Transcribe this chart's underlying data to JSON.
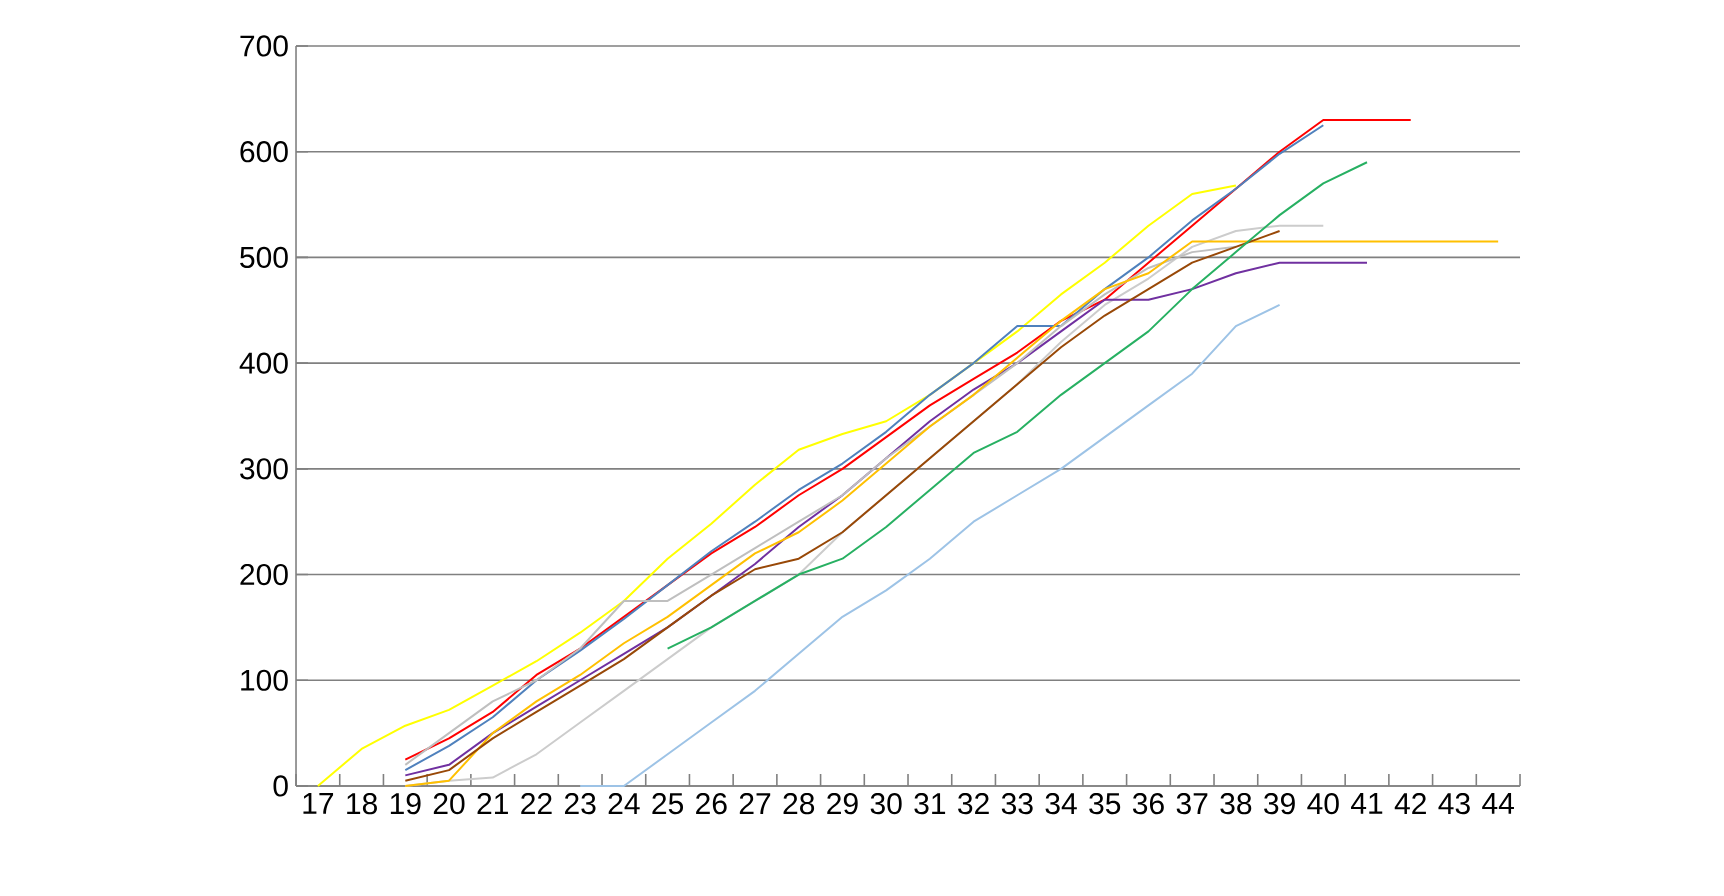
{
  "chart_data": {
    "type": "line",
    "categories": [
      "17",
      "18",
      "19",
      "20",
      "21",
      "22",
      "23",
      "24",
      "25",
      "26",
      "27",
      "28",
      "29",
      "30",
      "31",
      "32",
      "33",
      "34",
      "35",
      "36",
      "37",
      "38",
      "39",
      "40",
      "41",
      "42",
      "43",
      "44"
    ],
    "ylim": [
      0,
      700
    ],
    "yticks": [
      0,
      100,
      200,
      300,
      400,
      500,
      600,
      700
    ],
    "grid": "y",
    "series": [
      {
        "color": "#cccccc",
        "values": [
          null,
          null,
          0,
          5,
          8,
          30,
          60,
          90,
          120,
          150,
          175,
          200,
          240,
          275,
          310,
          345,
          380,
          420,
          455,
          480,
          510,
          525,
          530,
          530,
          null,
          null,
          null,
          null
        ]
      },
      {
        "color": "#ffff00",
        "values": [
          0,
          35,
          57,
          72,
          95,
          118,
          145,
          175,
          215,
          248,
          285,
          318,
          333,
          345,
          370,
          400,
          430,
          465,
          495,
          530,
          560,
          568,
          null,
          null,
          null,
          null,
          null,
          null
        ]
      },
      {
        "color": "#ff0000",
        "values": [
          null,
          null,
          25,
          45,
          70,
          105,
          130,
          160,
          190,
          220,
          245,
          275,
          300,
          330,
          360,
          385,
          410,
          440,
          460,
          495,
          530,
          565,
          600,
          630,
          630,
          630,
          null,
          null
        ]
      },
      {
        "color": "#4f81bd",
        "values": [
          null,
          null,
          15,
          38,
          65,
          100,
          128,
          158,
          190,
          222,
          250,
          280,
          305,
          335,
          370,
          400,
          435,
          435,
          470,
          500,
          535,
          565,
          598,
          625,
          null,
          null,
          null,
          null
        ]
      },
      {
        "color": "#7030a0",
        "values": [
          null,
          null,
          10,
          20,
          50,
          75,
          100,
          125,
          150,
          180,
          210,
          245,
          275,
          310,
          345,
          375,
          400,
          430,
          460,
          460,
          470,
          485,
          495,
          495,
          495,
          null,
          null,
          null
        ]
      },
      {
        "color": "#bfbfbf",
        "values": [
          null,
          null,
          20,
          50,
          80,
          100,
          130,
          175,
          175,
          200,
          225,
          250,
          275,
          310,
          340,
          370,
          400,
          435,
          465,
          490,
          505,
          510,
          null,
          null,
          null,
          null,
          null,
          null
        ]
      },
      {
        "color": "#ffc000",
        "values": [
          null,
          null,
          0,
          5,
          50,
          80,
          105,
          135,
          160,
          190,
          220,
          240,
          270,
          305,
          340,
          370,
          405,
          440,
          470,
          485,
          515,
          515,
          515,
          515,
          515,
          515,
          515,
          515
        ]
      },
      {
        "color": "#984807",
        "values": [
          null,
          null,
          5,
          15,
          45,
          70,
          95,
          120,
          150,
          180,
          205,
          215,
          240,
          275,
          310,
          345,
          380,
          415,
          445,
          470,
          495,
          510,
          525,
          null,
          null,
          null,
          null,
          null
        ]
      },
      {
        "color": "#27b062",
        "values": [
          null,
          null,
          null,
          null,
          null,
          null,
          null,
          null,
          130,
          150,
          175,
          200,
          215,
          245,
          280,
          315,
          335,
          370,
          400,
          430,
          470,
          505,
          540,
          570,
          590,
          null,
          null,
          null
        ]
      },
      {
        "color": "#9dc3e6",
        "values": [
          null,
          null,
          null,
          null,
          null,
          null,
          0,
          0,
          30,
          60,
          90,
          125,
          160,
          185,
          215,
          250,
          275,
          300,
          330,
          360,
          390,
          435,
          455,
          null,
          null,
          null,
          null,
          null
        ]
      }
    ]
  }
}
